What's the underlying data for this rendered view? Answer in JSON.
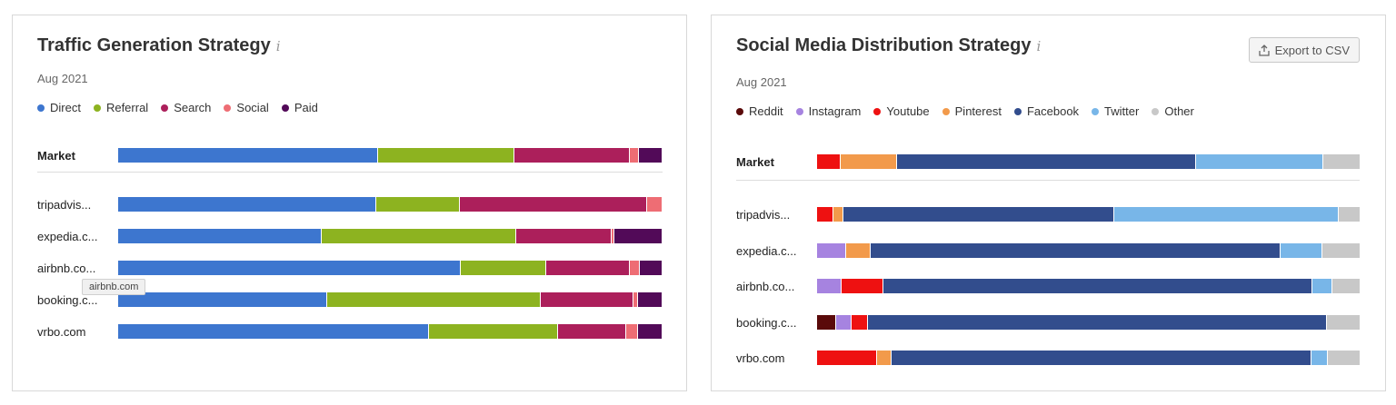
{
  "chart_data": [
    {
      "type": "bar",
      "orientation": "horizontal",
      "stacked": true,
      "normalized": true,
      "title": "Traffic Generation Strategy",
      "subtitle": "Aug 2021",
      "legend_position": "top-left",
      "categories": [
        "Market",
        "tripadvis...",
        "expedia.c...",
        "airbnb.co...",
        "booking.c...",
        "vrbo.com"
      ],
      "series": [
        {
          "name": "Direct",
          "color": "#3d76cf",
          "values": [
            47.8,
            47.5,
            37.5,
            63.0,
            38.5,
            57.2
          ]
        },
        {
          "name": "Referral",
          "color": "#8db320",
          "values": [
            25.1,
            15.4,
            35.7,
            15.8,
            39.3,
            23.7
          ]
        },
        {
          "name": "Search",
          "color": "#ac1f5b",
          "values": [
            21.3,
            34.4,
            17.6,
            15.4,
            17.1,
            12.6
          ]
        },
        {
          "name": "Social",
          "color": "#ee6d74",
          "values": [
            1.7,
            2.7,
            0.5,
            1.8,
            0.8,
            2.2
          ]
        },
        {
          "name": "Paid",
          "color": "#520a58",
          "values": [
            4.1,
            0.0,
            8.7,
            4.0,
            4.3,
            4.3
          ]
        }
      ]
    },
    {
      "type": "bar",
      "orientation": "horizontal",
      "stacked": true,
      "normalized": true,
      "title": "Social Media Distribution Strategy",
      "subtitle": "Aug 2021",
      "legend_position": "top-left",
      "categories": [
        "Market",
        "tripadvis...",
        "expedia.c...",
        "airbnb.co...",
        "booking.c...",
        "vrbo.com"
      ],
      "series": [
        {
          "name": "Reddit",
          "color": "#5a0a0a",
          "values": [
            0,
            0,
            0,
            0,
            3.5,
            0
          ]
        },
        {
          "name": "Instagram",
          "color": "#a683e0",
          "values": [
            0,
            0,
            5.4,
            4.5,
            2.8,
            0
          ]
        },
        {
          "name": "Youtube",
          "color": "#ee1111",
          "values": [
            4.3,
            3.0,
            0,
            7.8,
            3.0,
            11.1
          ]
        },
        {
          "name": "Pinterest",
          "color": "#f29a4b",
          "values": [
            10.5,
            1.8,
            4.4,
            0,
            0,
            2.6
          ]
        },
        {
          "name": "Facebook",
          "color": "#324d8d",
          "values": [
            55.1,
            50.0,
            75.6,
            79.0,
            84.7,
            77.4
          ]
        },
        {
          "name": "Twitter",
          "color": "#78b6e8",
          "values": [
            23.4,
            41.4,
            7.7,
            3.7,
            0,
            3.1
          ]
        },
        {
          "name": "Other",
          "color": "#c8c8c8",
          "values": [
            6.7,
            3.8,
            6.9,
            5.0,
            6.0,
            5.8
          ]
        }
      ]
    }
  ],
  "social_panel": {
    "export_label": "Export to CSV"
  },
  "tooltip": {
    "text": "airbnb.com"
  },
  "icons": {
    "info": "info-icon",
    "export": "export-icon"
  }
}
